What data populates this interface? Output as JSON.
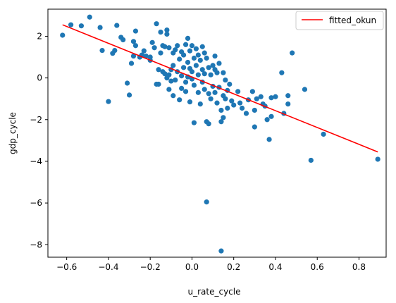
{
  "chart_data": {
    "type": "scatter",
    "xlabel": "u_rate_cycle",
    "ylabel": "gdp_cycle",
    "xlim": [
      -0.69,
      0.93
    ],
    "ylim": [
      -8.6,
      3.3
    ],
    "xticks": [
      -0.6,
      -0.4,
      -0.2,
      0.0,
      0.2,
      0.4,
      0.6,
      0.8
    ],
    "xtick_labels": [
      "−0.6",
      "−0.4",
      "−0.2",
      "0.0",
      "0.2",
      "0.4",
      "0.6",
      "0.8"
    ],
    "yticks": [
      -8,
      -6,
      -4,
      -2,
      0,
      2
    ],
    "ytick_labels": [
      "−8",
      "−6",
      "−4",
      "−2",
      "0",
      "2"
    ],
    "grid": false,
    "legend_position": "top-right",
    "colors": {
      "points": "#1f77b4",
      "fit": "#ff0000"
    },
    "fit_line": {
      "name": "fitted_okun",
      "x": [
        -0.62,
        0.89
      ],
      "y": [
        2.55,
        -3.55
      ]
    },
    "points": [
      [
        -0.62,
        2.05
      ],
      [
        -0.58,
        2.55
      ],
      [
        -0.53,
        2.5
      ],
      [
        -0.49,
        2.92
      ],
      [
        -0.44,
        2.42
      ],
      [
        -0.43,
        1.32
      ],
      [
        -0.4,
        -1.13
      ],
      [
        -0.38,
        1.18
      ],
      [
        -0.37,
        1.32
      ],
      [
        -0.36,
        2.52
      ],
      [
        -0.34,
        1.95
      ],
      [
        -0.33,
        1.83
      ],
      [
        -0.31,
        -0.25
      ],
      [
        -0.3,
        -0.82
      ],
      [
        -0.29,
        0.7
      ],
      [
        -0.28,
        1.05
      ],
      [
        -0.28,
        1.75
      ],
      [
        -0.27,
        2.25
      ],
      [
        -0.27,
        1.55
      ],
      [
        -0.25,
        1.0
      ],
      [
        -0.24,
        1.1
      ],
      [
        -0.23,
        1.3
      ],
      [
        -0.22,
        1.05
      ],
      [
        -0.2,
        1.0
      ],
      [
        -0.2,
        0.85
      ],
      [
        -0.19,
        1.7
      ],
      [
        -0.18,
        1.45
      ],
      [
        -0.17,
        2.6
      ],
      [
        -0.17,
        -0.3
      ],
      [
        -0.16,
        -0.3
      ],
      [
        -0.16,
        0.4
      ],
      [
        -0.15,
        1.2
      ],
      [
        -0.15,
        2.2
      ],
      [
        -0.14,
        1.55
      ],
      [
        -0.14,
        0.3
      ],
      [
        -0.13,
        1.5
      ],
      [
        -0.13,
        0.2
      ],
      [
        -0.12,
        2.3
      ],
      [
        -0.12,
        2.1
      ],
      [
        -0.12,
        0.0
      ],
      [
        -0.11,
        1.45
      ],
      [
        -0.11,
        -0.55
      ],
      [
        -0.11,
        0.15
      ],
      [
        -0.1,
        0.4
      ],
      [
        -0.1,
        -0.15
      ],
      [
        -0.09,
        1.2
      ],
      [
        -0.09,
        0.6
      ],
      [
        -0.09,
        -0.85
      ],
      [
        -0.08,
        1.35
      ],
      [
        -0.08,
        -0.1
      ],
      [
        -0.07,
        1.55
      ],
      [
        -0.07,
        0.3
      ],
      [
        -0.06,
        0.9
      ],
      [
        -0.06,
        -1.05
      ],
      [
        -0.05,
        1.25
      ],
      [
        -0.05,
        0.1
      ],
      [
        -0.05,
        -0.5
      ],
      [
        -0.04,
        1.1
      ],
      [
        -0.04,
        0.5
      ],
      [
        -0.03,
        1.6
      ],
      [
        -0.03,
        -0.2
      ],
      [
        -0.03,
        -0.65
      ],
      [
        -0.02,
        1.9
      ],
      [
        -0.02,
        0.75
      ],
      [
        -0.02,
        0.05
      ],
      [
        -0.01,
        1.3
      ],
      [
        -0.01,
        -1.15
      ],
      [
        -0.01,
        0.45
      ],
      [
        0.0,
        1.55
      ],
      [
        0.0,
        0.3
      ],
      [
        0.0,
        -0.05
      ],
      [
        0.01,
        0.95
      ],
      [
        0.01,
        -0.35
      ],
      [
        0.01,
        -2.15
      ],
      [
        0.02,
        1.4
      ],
      [
        0.02,
        0.6
      ],
      [
        0.03,
        1.1
      ],
      [
        0.03,
        0.15
      ],
      [
        0.03,
        -0.7
      ],
      [
        0.04,
        0.85
      ],
      [
        0.04,
        -1.25
      ],
      [
        0.05,
        1.5
      ],
      [
        0.05,
        0.4
      ],
      [
        0.05,
        -0.2
      ],
      [
        0.06,
        1.2
      ],
      [
        0.06,
        0.2
      ],
      [
        0.06,
        -0.55
      ],
      [
        0.07,
        0.95
      ],
      [
        0.07,
        -2.1
      ],
      [
        0.07,
        -5.95
      ],
      [
        0.08,
        0.5
      ],
      [
        0.08,
        -0.75
      ],
      [
        0.08,
        -2.2
      ],
      [
        0.09,
        0.15
      ],
      [
        0.09,
        -1.0
      ],
      [
        0.1,
        0.6
      ],
      [
        0.1,
        -0.4
      ],
      [
        0.11,
        0.4
      ],
      [
        0.11,
        1.05
      ],
      [
        0.11,
        -0.7
      ],
      [
        0.12,
        0.25
      ],
      [
        0.12,
        -1.2
      ],
      [
        0.13,
        0.7
      ],
      [
        0.13,
        -0.45
      ],
      [
        0.14,
        -8.3
      ],
      [
        0.14,
        -2.1
      ],
      [
        0.14,
        -1.55
      ],
      [
        0.15,
        0.25
      ],
      [
        0.15,
        -0.85
      ],
      [
        0.15,
        -1.9
      ],
      [
        0.16,
        -0.1
      ],
      [
        0.16,
        -1.0
      ],
      [
        0.17,
        -1.45
      ],
      [
        0.17,
        -0.6
      ],
      [
        0.18,
        -0.3
      ],
      [
        0.19,
        -1.1
      ],
      [
        0.2,
        -1.3
      ],
      [
        0.22,
        -0.65
      ],
      [
        0.23,
        -1.2
      ],
      [
        0.24,
        -1.45
      ],
      [
        0.26,
        -1.7
      ],
      [
        0.27,
        -1.05
      ],
      [
        0.29,
        -0.65
      ],
      [
        0.3,
        -1.55
      ],
      [
        0.3,
        -2.35
      ],
      [
        0.31,
        -1.0
      ],
      [
        0.33,
        -0.9
      ],
      [
        0.34,
        -1.25
      ],
      [
        0.35,
        -1.35
      ],
      [
        0.36,
        -2.0
      ],
      [
        0.37,
        -2.95
      ],
      [
        0.38,
        -0.95
      ],
      [
        0.38,
        -1.85
      ],
      [
        0.4,
        -0.9
      ],
      [
        0.43,
        0.25
      ],
      [
        0.44,
        -1.7
      ],
      [
        0.46,
        -1.25
      ],
      [
        0.46,
        -0.85
      ],
      [
        0.48,
        1.2
      ],
      [
        0.54,
        -0.55
      ],
      [
        0.57,
        -3.95
      ],
      [
        0.63,
        -2.7
      ],
      [
        0.89,
        -3.9
      ]
    ]
  }
}
